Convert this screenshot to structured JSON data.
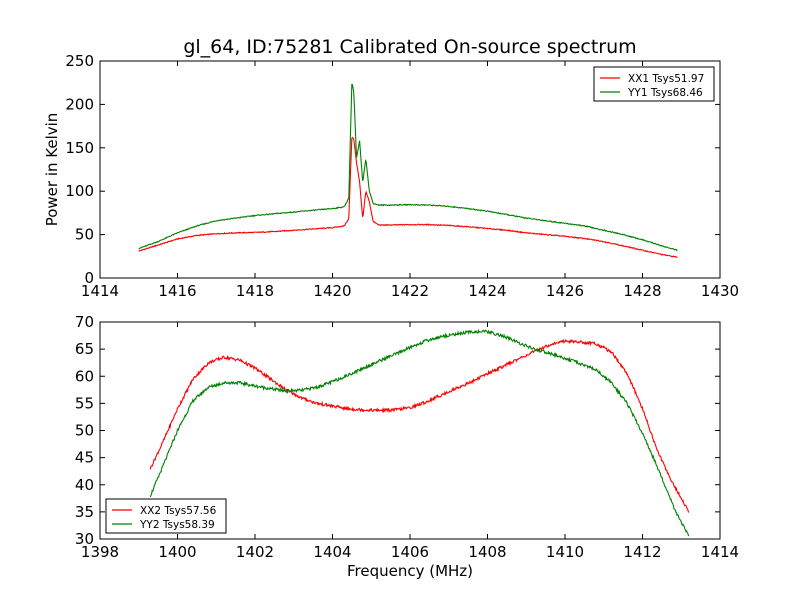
{
  "figure": {
    "title": "gl_64, ID:75281 Calibrated On-source spectrum"
  },
  "chart_data": [
    {
      "type": "line",
      "xlim": [
        1414,
        1430
      ],
      "ylim": [
        0,
        250
      ],
      "xticks": [
        1414,
        1416,
        1418,
        1420,
        1422,
        1424,
        1426,
        1428,
        1430
      ],
      "yticks": [
        0,
        50,
        100,
        150,
        200,
        250
      ],
      "xlabel": "",
      "ylabel": "Power in Kelvin",
      "legend_position": "top-right",
      "grid": false,
      "series": [
        {
          "name": "XX1 Tsys51.97",
          "color": "#ff0000",
          "x": [
            1415.0,
            1415.5,
            1416.0,
            1416.5,
            1417.0,
            1417.5,
            1418.0,
            1418.5,
            1419.0,
            1419.5,
            1420.0,
            1420.3,
            1420.42,
            1420.5,
            1420.55,
            1420.62,
            1420.7,
            1420.78,
            1420.86,
            1420.95,
            1421.05,
            1421.2,
            1421.5,
            1422.0,
            1422.5,
            1423.0,
            1423.5,
            1424.0,
            1424.5,
            1425.0,
            1425.5,
            1426.0,
            1426.5,
            1427.0,
            1427.5,
            1428.0,
            1428.5,
            1428.9
          ],
          "y": [
            31,
            38,
            45,
            49,
            51,
            52,
            52.5,
            53.5,
            55,
            56.5,
            58,
            60,
            68,
            163,
            160,
            133,
            110,
            68,
            100,
            88,
            65,
            61,
            61,
            61.5,
            61.5,
            60.5,
            59,
            57,
            55,
            52,
            50,
            48,
            45.5,
            42,
            37,
            32,
            27,
            24
          ]
        },
        {
          "name": "YY1 Tsys68.46",
          "color": "#008000",
          "x": [
            1415.0,
            1415.5,
            1416.0,
            1416.5,
            1417.0,
            1417.5,
            1418.0,
            1418.5,
            1419.0,
            1419.5,
            1420.0,
            1420.3,
            1420.42,
            1420.5,
            1420.55,
            1420.62,
            1420.7,
            1420.78,
            1420.86,
            1420.95,
            1421.05,
            1421.2,
            1421.5,
            1422.0,
            1422.5,
            1423.0,
            1423.5,
            1424.0,
            1424.5,
            1425.0,
            1425.5,
            1426.0,
            1426.5,
            1427.0,
            1427.5,
            1428.0,
            1428.5,
            1428.9
          ],
          "y": [
            34,
            42,
            52,
            60,
            66,
            69,
            72,
            74,
            76,
            78,
            80,
            82,
            92,
            226,
            214,
            138,
            158,
            110,
            138,
            100,
            86,
            84,
            84,
            84.5,
            84,
            82.5,
            80,
            77,
            73,
            69,
            66,
            63,
            60,
            55,
            50,
            44,
            37,
            32
          ]
        }
      ]
    },
    {
      "type": "line",
      "xlim": [
        1398,
        1414
      ],
      "ylim": [
        30,
        70
      ],
      "xticks": [
        1398,
        1400,
        1402,
        1404,
        1406,
        1408,
        1410,
        1412,
        1414
      ],
      "yticks": [
        30,
        35,
        40,
        45,
        50,
        55,
        60,
        65,
        70
      ],
      "xlabel": "Frequency (MHz)",
      "ylabel": "",
      "legend_position": "bottom-left",
      "grid": false,
      "series": [
        {
          "name": "XX2 Tsys57.56",
          "color": "#ff0000",
          "x": [
            1399.3,
            1399.6,
            1400.0,
            1400.4,
            1400.8,
            1401.2,
            1401.6,
            1402.0,
            1402.4,
            1402.8,
            1403.2,
            1403.6,
            1404.0,
            1404.4,
            1404.8,
            1405.2,
            1405.6,
            1406.0,
            1406.4,
            1406.8,
            1407.2,
            1407.6,
            1408.0,
            1408.4,
            1408.8,
            1409.2,
            1409.6,
            1410.0,
            1410.4,
            1410.8,
            1411.2,
            1411.6,
            1412.0,
            1412.4,
            1412.8,
            1413.0,
            1413.2
          ],
          "y": [
            43,
            47.5,
            54,
            59.5,
            62.5,
            63.5,
            63,
            61.5,
            59.5,
            57.5,
            56,
            55,
            54.5,
            54,
            53.8,
            53.7,
            53.8,
            54.2,
            55.2,
            56.5,
            57.8,
            59,
            60.5,
            61.8,
            63.2,
            64.5,
            65.8,
            66.5,
            66.3,
            66,
            64.5,
            60.5,
            54,
            46,
            40,
            37.5,
            35
          ]
        },
        {
          "name": "YY2 Tsys58.39",
          "color": "#008000",
          "x": [
            1399.3,
            1399.6,
            1400.0,
            1400.4,
            1400.8,
            1401.2,
            1401.6,
            1402.0,
            1402.4,
            1402.8,
            1403.2,
            1403.6,
            1404.0,
            1404.4,
            1404.8,
            1405.2,
            1405.6,
            1406.0,
            1406.4,
            1406.8,
            1407.2,
            1407.6,
            1408.0,
            1408.4,
            1408.8,
            1409.2,
            1409.6,
            1410.0,
            1410.4,
            1410.8,
            1411.2,
            1411.6,
            1412.0,
            1412.4,
            1412.8,
            1413.0,
            1413.2
          ],
          "y": [
            38,
            43,
            50,
            55.5,
            58,
            58.8,
            58.8,
            58.2,
            57.7,
            57.3,
            57.4,
            58,
            59,
            60.2,
            61.5,
            62.8,
            64,
            65.3,
            66.5,
            67.3,
            67.8,
            68.2,
            68.2,
            67.4,
            66.2,
            65,
            64.2,
            63.3,
            62.3,
            61.2,
            58.8,
            55,
            49.5,
            43,
            36,
            33,
            30.5
          ]
        }
      ]
    }
  ]
}
